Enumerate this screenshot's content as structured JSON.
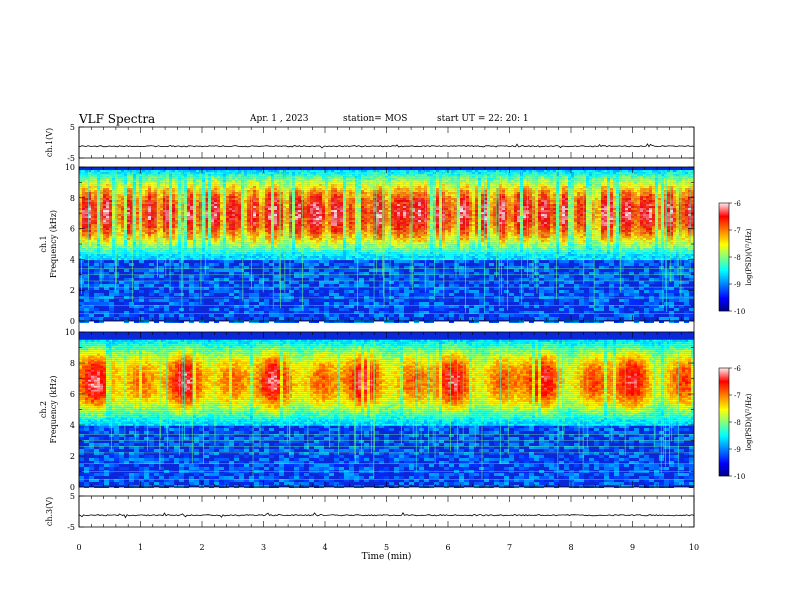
{
  "header": {
    "title": "VLF Spectra",
    "date": "Apr. 1 , 2023",
    "station": "station= MOS",
    "start": "start UT = 22: 20: 1"
  },
  "chart_data": [
    {
      "type": "line",
      "panel": "waveform-ch1",
      "ylabel": "ch.1(V)",
      "ylim": [
        -5,
        5
      ],
      "yticks": [
        "5",
        "-5"
      ],
      "series": [
        {
          "baseline_value": -1.2
        }
      ]
    },
    {
      "type": "heatmap",
      "panel": "spectrogram-ch1",
      "ylabel": "ch.1\nFrequency (kHz)",
      "ylim": [
        0,
        10
      ],
      "yticks": [
        "0",
        "2",
        "4",
        "6",
        "8",
        "10"
      ],
      "band_kHz": [
        4,
        9.8
      ],
      "colorbar": {
        "label": "log(PSD)(V²/Hz)",
        "range": [
          -10,
          -6
        ],
        "ticks": [
          "-6",
          "-7",
          "-8",
          "-9",
          "-10"
        ]
      }
    },
    {
      "type": "heatmap",
      "panel": "spectrogram-ch2",
      "ylabel": "ch.2\nFrequency (kHz)",
      "ylim": [
        0,
        10
      ],
      "yticks": [
        "0",
        "2",
        "4",
        "6",
        "8",
        "10"
      ],
      "band_kHz": [
        4,
        9.5
      ],
      "colorbar": {
        "label": "log(PSD)(V²/Hz)",
        "range": [
          -10,
          -6
        ],
        "ticks": [
          "-6",
          "-7",
          "-8",
          "-9",
          "-10"
        ]
      }
    },
    {
      "type": "line",
      "panel": "waveform-ch3",
      "ylabel": "ch.3(V)",
      "ylim": [
        -5,
        5
      ],
      "yticks": [
        "5",
        "-5"
      ],
      "series": [
        {
          "baseline_value": -1.2
        }
      ]
    }
  ],
  "xaxis": {
    "label": "Time (min)",
    "range": [
      0,
      10
    ],
    "ticks": [
      "0",
      "1",
      "2",
      "3",
      "4",
      "5",
      "6",
      "7",
      "8",
      "9",
      "10"
    ]
  }
}
